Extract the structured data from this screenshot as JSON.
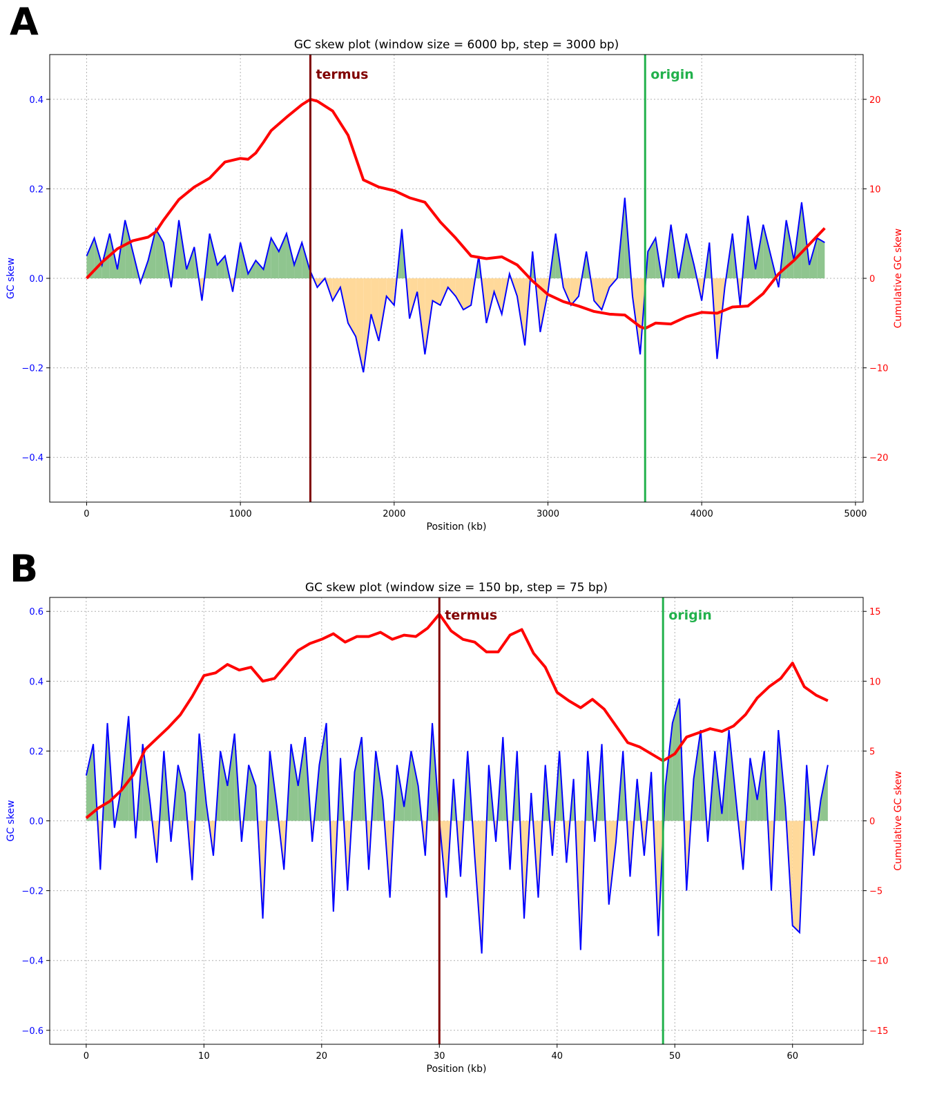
{
  "colors": {
    "skew": "#0000ff",
    "cumulative": "#ff0000",
    "termus": "#800000",
    "origin": "#22b14c",
    "fill_positive": "#8fc58f",
    "fill_negative": "#ffd99a",
    "grid": "#b0b0b0"
  },
  "chart_data": [
    {
      "panel": "A",
      "type": "line",
      "title": "GC skew plot (window size = 6000 bp, step = 3000 bp)",
      "xlabel": "Position (kb)",
      "ylabel_left": "GC skew",
      "ylabel_right": "Cumulative GC skew",
      "xlim": [
        -240,
        5050
      ],
      "ylim_left": [
        -0.5,
        0.5
      ],
      "ylim_right": [
        -25,
        25
      ],
      "xticks": [
        0,
        1000,
        2000,
        3000,
        4000,
        5000
      ],
      "xtick_labels": [
        "0",
        "1000",
        "2000",
        "3000",
        "4000",
        "5000"
      ],
      "yticks_left": [
        -0.4,
        -0.2,
        0.0,
        0.2,
        0.4
      ],
      "ytick_labels_left": [
        "−0.4",
        "−0.2",
        "0.0",
        "0.2",
        "0.4"
      ],
      "yticks_right": [
        -20,
        -10,
        0,
        10,
        20
      ],
      "ytick_labels_right": [
        "−20",
        "−10",
        "0",
        "10",
        "20"
      ],
      "grid": true,
      "markers": [
        {
          "label": "termus",
          "x": 1455,
          "color": "#800000"
        },
        {
          "label": "origin",
          "x": 3632,
          "color": "#22b14c"
        }
      ],
      "series": [
        {
          "axis": "left",
          "x": [
            0,
            50,
            100,
            150,
            200,
            250,
            300,
            350,
            400,
            450,
            500,
            550,
            600,
            650,
            700,
            750,
            800,
            850,
            900,
            950,
            1000,
            1050,
            1100,
            1150,
            1200,
            1250,
            1300,
            1350,
            1400,
            1450,
            1500,
            1550,
            1600,
            1650,
            1700,
            1750,
            1800,
            1850,
            1900,
            1950,
            2000,
            2050,
            2100,
            2150,
            2200,
            2250,
            2300,
            2350,
            2400,
            2450,
            2500,
            2550,
            2600,
            2650,
            2700,
            2750,
            2800,
            2850,
            2900,
            2950,
            3000,
            3050,
            3100,
            3150,
            3200,
            3250,
            3300,
            3350,
            3400,
            3450,
            3500,
            3550,
            3600,
            3650,
            3700,
            3750,
            3800,
            3850,
            3900,
            3950,
            4000,
            4050,
            4100,
            4150,
            4200,
            4250,
            4300,
            4350,
            4400,
            4450,
            4500,
            4550,
            4600,
            4650,
            4700,
            4750,
            4800
          ],
          "values": [
            0.05,
            0.09,
            0.03,
            0.1,
            0.02,
            0.13,
            0.06,
            -0.01,
            0.04,
            0.11,
            0.08,
            -0.02,
            0.13,
            0.02,
            0.07,
            -0.05,
            0.1,
            0.03,
            0.05,
            -0.03,
            0.08,
            0.01,
            0.04,
            0.02,
            0.09,
            0.06,
            0.1,
            0.03,
            0.08,
            0.02,
            -0.02,
            0.0,
            -0.05,
            -0.02,
            -0.1,
            -0.13,
            -0.21,
            -0.08,
            -0.14,
            -0.04,
            -0.06,
            0.11,
            -0.09,
            -0.03,
            -0.17,
            -0.05,
            -0.06,
            -0.02,
            -0.04,
            -0.07,
            -0.06,
            0.05,
            -0.1,
            -0.03,
            -0.08,
            0.01,
            -0.04,
            -0.15,
            0.06,
            -0.12,
            -0.03,
            0.1,
            -0.02,
            -0.06,
            -0.04,
            0.06,
            -0.05,
            -0.07,
            -0.02,
            0.0,
            0.18,
            -0.04,
            -0.17,
            0.06,
            0.09,
            -0.02,
            0.12,
            0.0,
            0.1,
            0.03,
            -0.05,
            0.08,
            -0.18,
            -0.02,
            0.1,
            -0.06,
            0.14,
            0.02,
            0.12,
            0.05,
            -0.02,
            0.13,
            0.04,
            0.17,
            0.03,
            0.09,
            0.08
          ]
        },
        {
          "axis": "right",
          "x": [
            0,
            100,
            200,
            300,
            400,
            450,
            500,
            600,
            700,
            800,
            900,
            1000,
            1050,
            1100,
            1150,
            1200,
            1300,
            1400,
            1455,
            1500,
            1600,
            1700,
            1800,
            1900,
            2000,
            2100,
            2200,
            2300,
            2400,
            2500,
            2600,
            2700,
            2800,
            2900,
            3000,
            3100,
            3200,
            3300,
            3400,
            3500,
            3600,
            3632,
            3700,
            3800,
            3900,
            4000,
            4100,
            4200,
            4300,
            4400,
            4500,
            4600,
            4700,
            4800
          ],
          "values": [
            0,
            1.8,
            3.3,
            4.2,
            4.6,
            5.2,
            6.5,
            8.8,
            10.2,
            11.2,
            13.0,
            13.4,
            13.3,
            14.0,
            15.2,
            16.5,
            18.0,
            19.4,
            20.0,
            19.8,
            18.7,
            16.0,
            11.0,
            10.2,
            9.8,
            9.0,
            8.5,
            6.3,
            4.5,
            2.5,
            2.2,
            2.4,
            1.5,
            -0.3,
            -1.8,
            -2.6,
            -3.1,
            -3.7,
            -4.0,
            -4.1,
            -5.4,
            -5.6,
            -5.0,
            -5.1,
            -4.3,
            -3.8,
            -3.9,
            -3.2,
            -3.1,
            -1.7,
            0.5,
            2.0,
            3.8,
            5.6
          ]
        }
      ]
    },
    {
      "panel": "B",
      "type": "line",
      "title": "GC skew plot (window size = 150 bp, step = 75 bp)",
      "xlabel": "Position (kb)",
      "ylabel_left": "GC skew",
      "ylabel_right": "Cumulative GC skew",
      "xlim": [
        -3.1,
        66.0
      ],
      "ylim_left": [
        -0.64,
        0.64
      ],
      "ylim_right": [
        -16,
        16
      ],
      "xticks": [
        0,
        10,
        20,
        30,
        40,
        50,
        60
      ],
      "xtick_labels": [
        "0",
        "10",
        "20",
        "30",
        "40",
        "50",
        "60"
      ],
      "yticks_left": [
        -0.6,
        -0.4,
        -0.2,
        0.0,
        0.2,
        0.4,
        0.6
      ],
      "ytick_labels_left": [
        "−0.6",
        "−0.4",
        "−0.2",
        "0.0",
        "0.2",
        "0.4",
        "0.6"
      ],
      "yticks_right": [
        -15,
        -10,
        -5,
        0,
        5,
        10,
        15
      ],
      "ytick_labels_right": [
        "−15",
        "−10",
        "−5",
        "0",
        "5",
        "10",
        "15"
      ],
      "grid": true,
      "markers": [
        {
          "label": "termus",
          "x": 30.0,
          "color": "#800000"
        },
        {
          "label": "origin",
          "x": 49.0,
          "color": "#22b14c"
        }
      ],
      "series": [
        {
          "axis": "left",
          "x": [
            0,
            0.6,
            1.2,
            1.8,
            2.4,
            3.0,
            3.6,
            4.2,
            4.8,
            5.4,
            6.0,
            6.6,
            7.2,
            7.8,
            8.4,
            9.0,
            9.6,
            10.2,
            10.8,
            11.4,
            12.0,
            12.6,
            13.2,
            13.8,
            14.4,
            15.0,
            15.6,
            16.2,
            16.8,
            17.4,
            18.0,
            18.6,
            19.2,
            19.8,
            20.4,
            21.0,
            21.6,
            22.2,
            22.8,
            23.4,
            24.0,
            24.6,
            25.2,
            25.8,
            26.4,
            27.0,
            27.6,
            28.2,
            28.8,
            29.4,
            30.0,
            30.6,
            31.2,
            31.8,
            32.4,
            33.0,
            33.6,
            34.2,
            34.8,
            35.4,
            36.0,
            36.6,
            37.2,
            37.8,
            38.4,
            39.0,
            39.6,
            40.2,
            40.8,
            41.4,
            42.0,
            42.6,
            43.2,
            43.8,
            44.4,
            45.0,
            45.6,
            46.2,
            46.8,
            47.4,
            48.0,
            48.6,
            49.2,
            49.8,
            50.4,
            51.0,
            51.6,
            52.2,
            52.8,
            53.4,
            54.0,
            54.6,
            55.2,
            55.8,
            56.4,
            57.0,
            57.6,
            58.2,
            58.8,
            59.4,
            60.0,
            60.6,
            61.2,
            61.8,
            62.4,
            63.0
          ],
          "values": [
            0.13,
            0.22,
            -0.14,
            0.28,
            -0.02,
            0.1,
            0.3,
            -0.05,
            0.22,
            0.06,
            -0.12,
            0.2,
            -0.06,
            0.16,
            0.08,
            -0.17,
            0.25,
            0.05,
            -0.1,
            0.2,
            0.1,
            0.25,
            -0.06,
            0.16,
            0.1,
            -0.28,
            0.2,
            0.04,
            -0.14,
            0.22,
            0.1,
            0.24,
            -0.06,
            0.16,
            0.28,
            -0.26,
            0.18,
            -0.2,
            0.14,
            0.24,
            -0.14,
            0.2,
            0.06,
            -0.22,
            0.16,
            0.04,
            0.2,
            0.1,
            -0.1,
            0.28,
            0.0,
            -0.22,
            0.12,
            -0.16,
            0.2,
            -0.1,
            -0.38,
            0.16,
            -0.06,
            0.24,
            -0.14,
            0.2,
            -0.28,
            0.08,
            -0.22,
            0.16,
            -0.1,
            0.2,
            -0.12,
            0.12,
            -0.37,
            0.2,
            -0.06,
            0.22,
            -0.24,
            -0.06,
            0.2,
            -0.16,
            0.12,
            -0.1,
            0.14,
            -0.33,
            0.1,
            0.28,
            0.35,
            -0.2,
            0.12,
            0.26,
            -0.06,
            0.2,
            0.02,
            0.26,
            0.06,
            -0.14,
            0.18,
            0.06,
            0.2,
            -0.2,
            0.26,
            0.04,
            -0.3,
            -0.32,
            0.16,
            -0.1,
            0.06,
            0.16
          ]
        },
        {
          "axis": "right",
          "x": [
            0,
            1,
            2,
            3,
            4,
            5,
            6,
            7,
            8,
            9,
            10,
            11,
            12,
            13,
            14,
            15,
            16,
            17,
            18,
            19,
            20,
            21,
            22,
            23,
            24,
            25,
            26,
            27,
            28,
            29,
            30,
            31,
            32,
            33,
            34,
            35,
            36,
            37,
            38,
            39,
            40,
            41,
            42,
            43,
            44,
            45,
            46,
            47,
            48,
            49,
            50,
            51,
            52,
            53,
            54,
            55,
            56,
            57,
            58,
            59,
            60,
            61,
            62,
            63
          ],
          "values": [
            0.2,
            0.9,
            1.4,
            2.2,
            3.3,
            5.1,
            5.9,
            6.7,
            7.6,
            8.9,
            10.4,
            10.6,
            11.2,
            10.8,
            11.0,
            10.0,
            10.2,
            11.2,
            12.2,
            12.7,
            13.0,
            13.4,
            12.8,
            13.2,
            13.2,
            13.5,
            13.0,
            13.3,
            13.2,
            13.8,
            14.8,
            13.6,
            13.0,
            12.8,
            12.1,
            12.1,
            13.3,
            13.7,
            12.0,
            11.0,
            9.2,
            8.6,
            8.1,
            8.7,
            8.0,
            6.8,
            5.6,
            5.3,
            4.8,
            4.3,
            4.8,
            6.0,
            6.3,
            6.6,
            6.4,
            6.8,
            7.6,
            8.8,
            9.6,
            10.2,
            11.3,
            9.6,
            9.0,
            8.6
          ]
        }
      ]
    }
  ]
}
